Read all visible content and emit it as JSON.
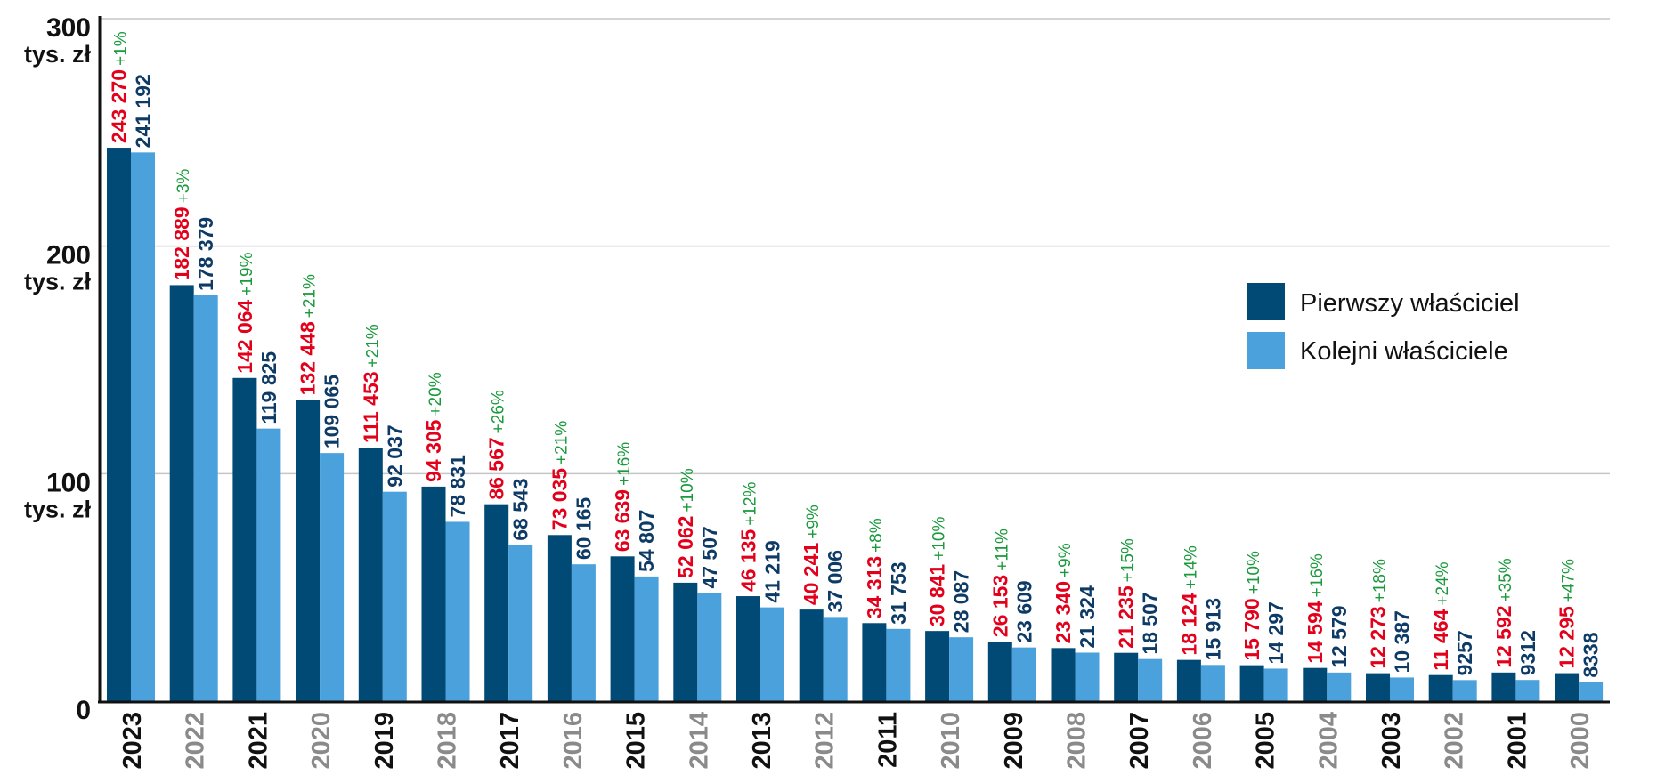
{
  "chart_data": {
    "type": "bar",
    "categories": [
      "2023",
      "2022",
      "2021",
      "2020",
      "2019",
      "2018",
      "2017",
      "2016",
      "2015",
      "2014",
      "2013",
      "2012",
      "2011",
      "2010",
      "2009",
      "2008",
      "2007",
      "2006",
      "2005",
      "2004",
      "2003",
      "2002",
      "2001",
      "2000"
    ],
    "series": [
      {
        "name": "Pierwszy właściciel",
        "color": "#004a75",
        "label_color": "#e3001b",
        "values": [
          243270,
          182889,
          142064,
          132448,
          111453,
          94305,
          86567,
          73035,
          63639,
          52062,
          46135,
          40241,
          34313,
          30841,
          26153,
          23340,
          21235,
          18124,
          15790,
          14594,
          12273,
          11464,
          12592,
          12295
        ],
        "labels": [
          "243 270",
          "182 889",
          "142 064",
          "132 448",
          "111 453",
          "94 305",
          "86 567",
          "73 035",
          "63 639",
          "52 062",
          "46 135",
          "40 241",
          "34 313",
          "30 841",
          "26 153",
          "23 340",
          "21 235",
          "18 124",
          "15 790",
          "14 594",
          "12 273",
          "11 464",
          "12 592",
          "12 295"
        ]
      },
      {
        "name": "Kolejni właściciele",
        "color": "#4ba1db",
        "label_color": "#0d3b66",
        "values": [
          241192,
          178379,
          119825,
          109065,
          92037,
          78831,
          68543,
          60165,
          54807,
          47507,
          41219,
          37006,
          31753,
          28087,
          23609,
          21324,
          18507,
          15913,
          14297,
          12579,
          10387,
          9257,
          9312,
          8338
        ],
        "labels": [
          "241 192",
          "178 379",
          "119 825",
          "109 065",
          "92 037",
          "78 831",
          "68 543",
          "60 165",
          "54 807",
          "47 507",
          "41 219",
          "37 006",
          "31 753",
          "28 087",
          "23 609",
          "21 324",
          "18 507",
          "15 913",
          "14 297",
          "12 579",
          "10 387",
          "9257",
          "9312",
          "8338"
        ]
      }
    ],
    "differences": [
      "+1%",
      "+3%",
      "+19%",
      "+21%",
      "+21%",
      "+20%",
      "+26%",
      "+21%",
      "+16%",
      "+10%",
      "+12%",
      "+9%",
      "+8%",
      "+10%",
      "+11%",
      "+9%",
      "+15%",
      "+14%",
      "+10%",
      "+16%",
      "+18%",
      "+24%",
      "+35%",
      "+47%"
    ],
    "difference_color": "#1a9a3c",
    "category_colors": [
      "#111111",
      "#8a8a8a"
    ],
    "ylim": [
      0,
      300000
    ],
    "y_ticks": [
      {
        "value": 0,
        "label": "0",
        "unit": ""
      },
      {
        "value": 100000,
        "label": "100",
        "unit": "tys. zł"
      },
      {
        "value": 200000,
        "label": "200",
        "unit": "tys. zł"
      },
      {
        "value": 300000,
        "label": "300",
        "unit": "tys. zł"
      }
    ],
    "grid": true,
    "legend_position": "right",
    "title": "",
    "xlabel": "",
    "ylabel": ""
  }
}
